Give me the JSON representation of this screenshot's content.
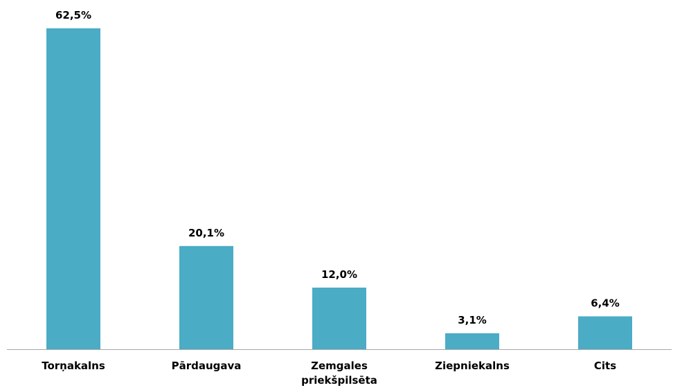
{
  "chart_data": {
    "type": "bar",
    "categories": [
      "Torņakalns",
      "Pārdaugava",
      "Zemgales priekšpilsēta",
      "Ziepniekalns",
      "Cits"
    ],
    "values": [
      62.5,
      20.1,
      12.0,
      3.1,
      6.4
    ],
    "value_labels": [
      "62,5%",
      "20,1%",
      "12,0%",
      "3,1%",
      "6,4%"
    ],
    "color": "#4aacc5"
  }
}
